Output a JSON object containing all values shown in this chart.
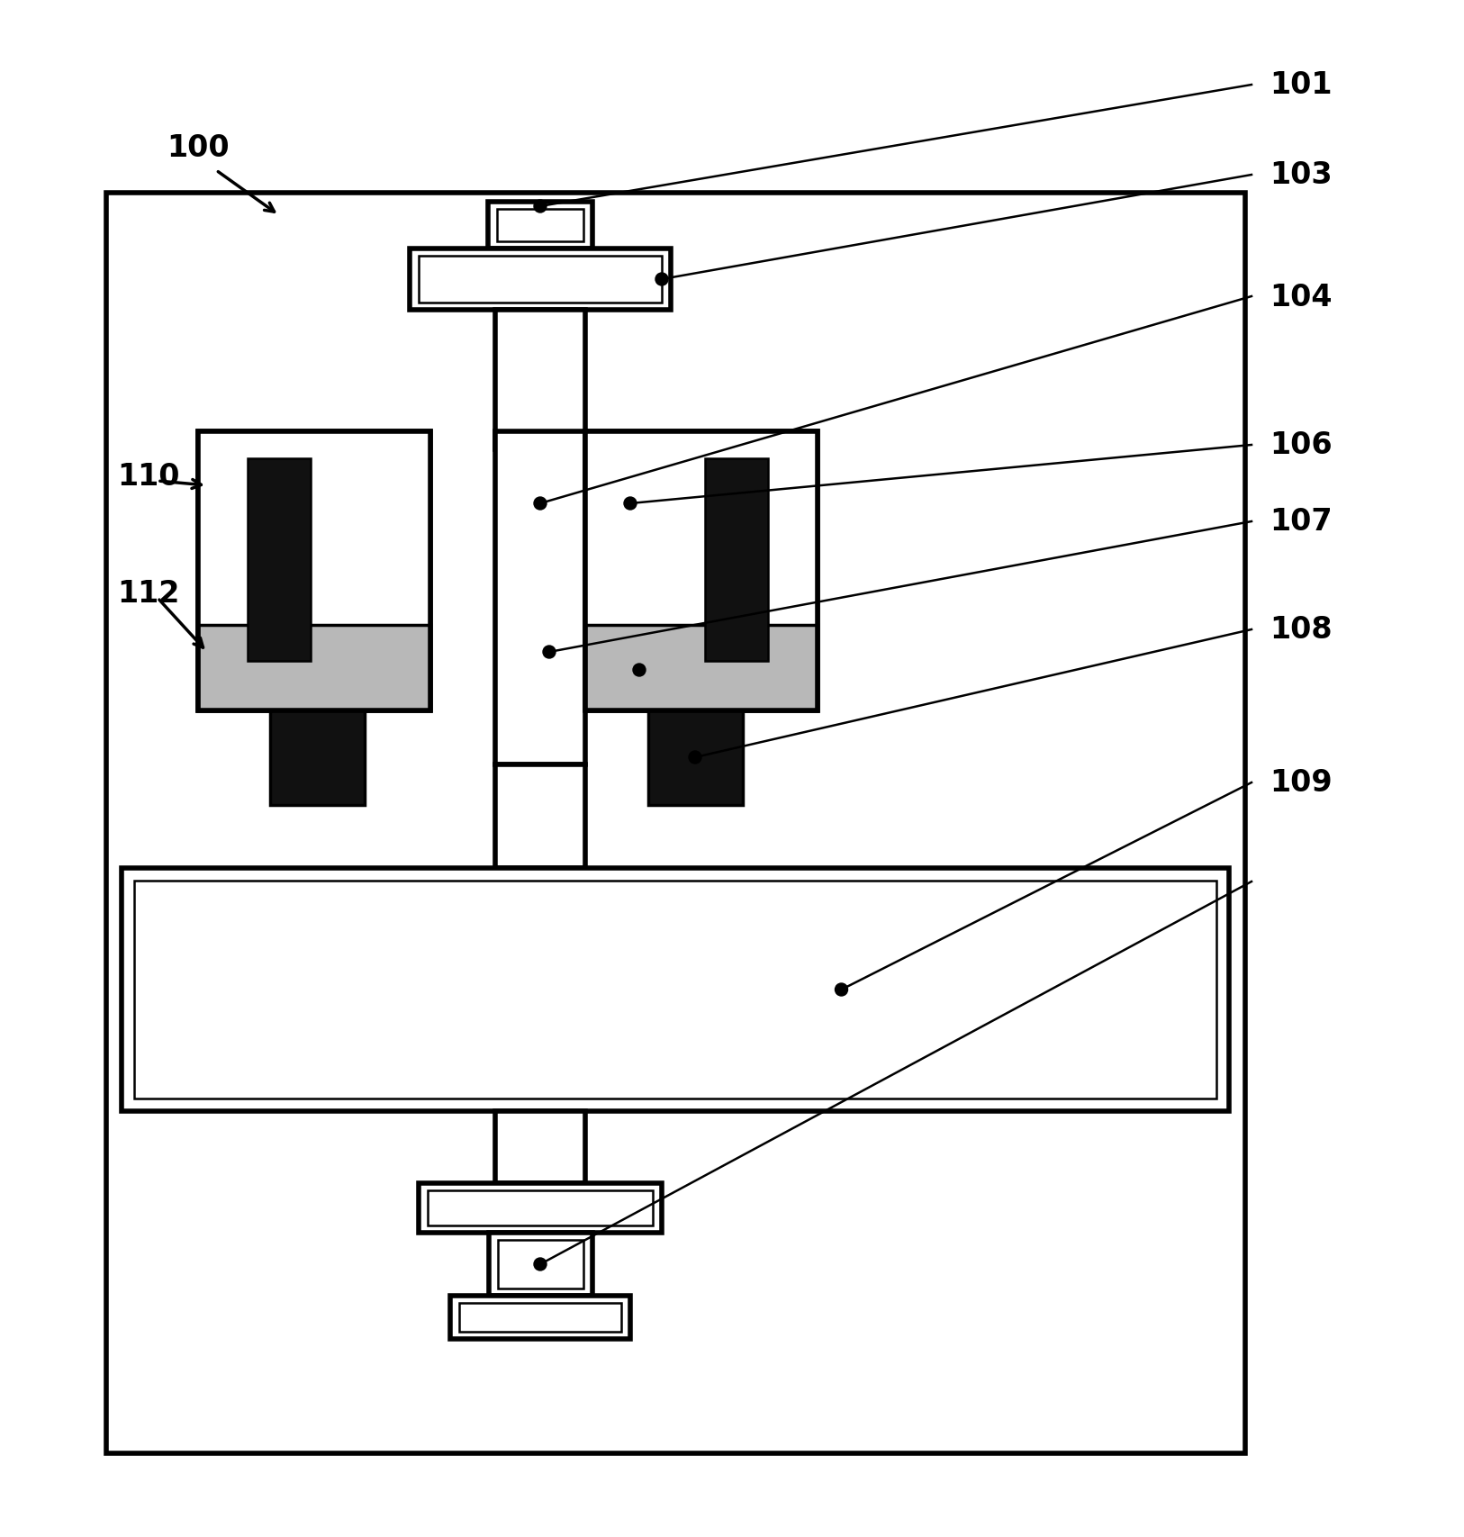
{
  "background_color": "#ffffff",
  "line_color": "#000000",
  "fill_white": "#ffffff",
  "fill_gray": "#b8b8b8",
  "fill_dark": "#111111",
  "label_fontsize": 24,
  "lw_thick": 4.0,
  "lw_med": 2.5,
  "lw_thin": 1.8
}
